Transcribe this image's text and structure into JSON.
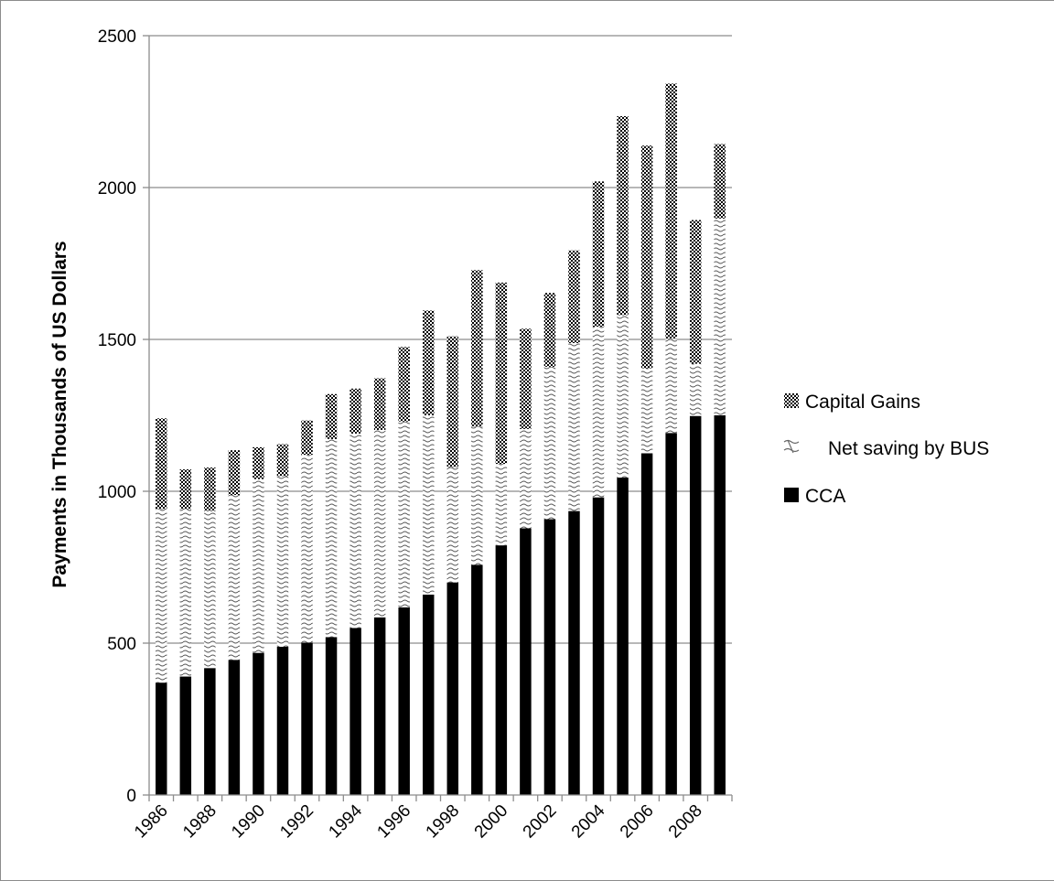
{
  "chart_data": {
    "type": "bar",
    "stacked": true,
    "title": "",
    "xlabel": "",
    "ylabel": "Payments in Thousands of US  Dollars",
    "ylim": [
      0,
      2500
    ],
    "yticks": [
      0,
      500,
      1000,
      1500,
      2000,
      2500
    ],
    "grid": true,
    "legend_position": "right",
    "categories": [
      1986,
      1987,
      1988,
      1989,
      1990,
      1991,
      1992,
      1993,
      1994,
      1995,
      1996,
      1997,
      1998,
      1999,
      2000,
      2001,
      2002,
      2003,
      2004,
      2005,
      2006,
      2007,
      2008,
      2009
    ],
    "xtick_labels": [
      "1986",
      "1988",
      "1990",
      "1992",
      "1994",
      "1996",
      "1998",
      "2000",
      "2002",
      "2004",
      "2006",
      "2008"
    ],
    "series": [
      {
        "name": "CCA",
        "pattern": "solid",
        "color": "#000000",
        "values": [
          370,
          390,
          418,
          445,
          468,
          488,
          502,
          520,
          550,
          585,
          618,
          660,
          700,
          758,
          822,
          878,
          908,
          935,
          980,
          1045,
          1125,
          1192,
          1248,
          1250
        ]
      },
      {
        "name": "Net saving by BUS",
        "pattern": "wave",
        "color": "#000000",
        "values": [
          572,
          552,
          517,
          543,
          572,
          562,
          618,
          652,
          640,
          617,
          612,
          590,
          380,
          455,
          268,
          327,
          502,
          553,
          562,
          535,
          280,
          310,
          172,
          648
        ]
      },
      {
        "name": "Capital Gains",
        "pattern": "checker",
        "color": "#000000",
        "values": [
          298,
          130,
          143,
          147,
          105,
          105,
          113,
          148,
          148,
          170,
          245,
          345,
          430,
          515,
          597,
          330,
          243,
          305,
          478,
          655,
          733,
          840,
          473,
          245
        ]
      }
    ],
    "legend_order": [
      "Capital Gains",
      "Net saving by BUS",
      "CCA"
    ]
  }
}
